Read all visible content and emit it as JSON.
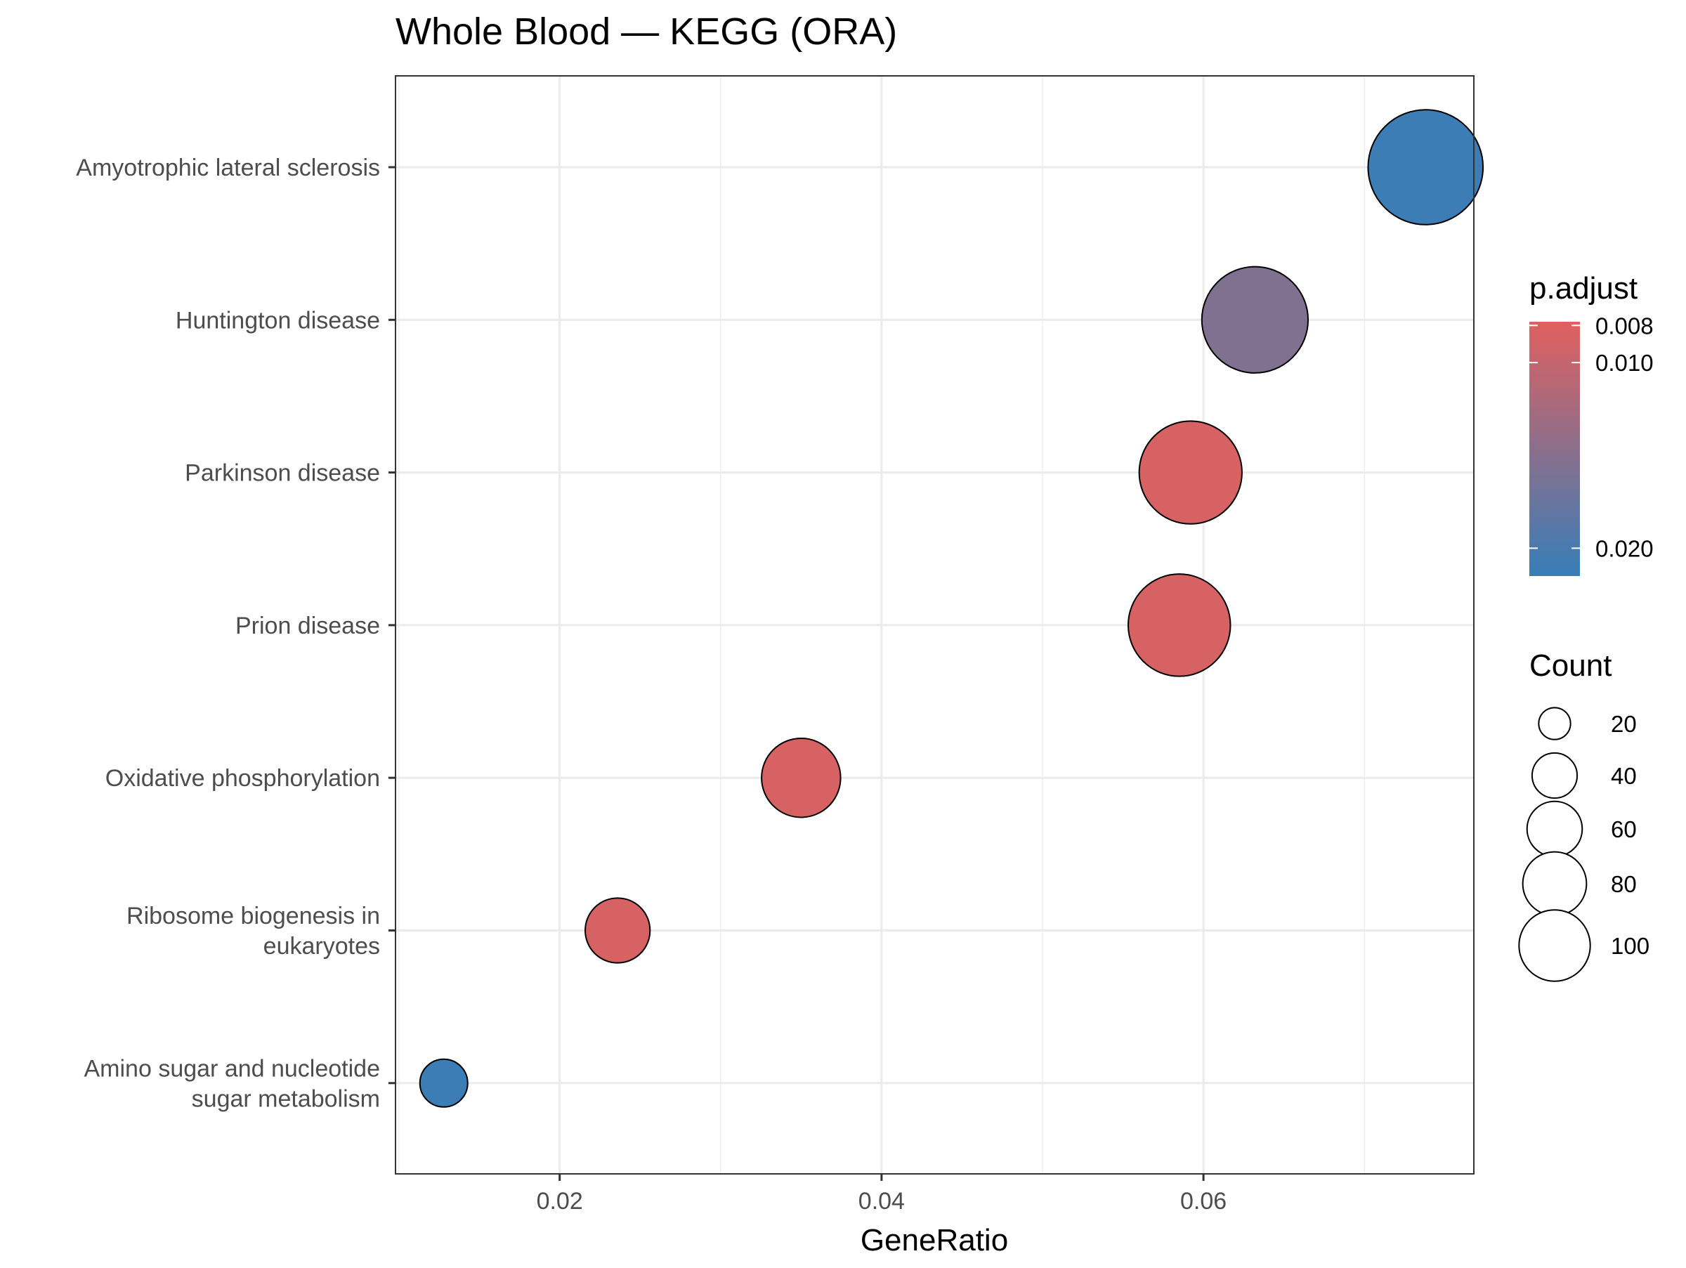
{
  "chart_data": {
    "type": "scatter",
    "title": "Whole Blood — KEGG (ORA)",
    "xlabel": "GeneRatio",
    "ylabel": "",
    "xlim": [
      0.0098,
      0.0768
    ],
    "x_ticks": [
      0.02,
      0.04,
      0.06
    ],
    "x_tick_labels": [
      "0.02",
      "0.04",
      "0.06"
    ],
    "grid": true,
    "categories": [
      "Amyotrophic lateral sclerosis",
      "Huntington disease",
      "Parkinson disease",
      "Prion disease",
      "Oxidative phosphorylation",
      "Ribosome biogenesis in eukaryotes",
      "Amino sugar and nucleotide sugar metabolism"
    ],
    "category_label_lines": [
      [
        "Amyotrophic lateral sclerosis"
      ],
      [
        "Huntington disease"
      ],
      [
        "Parkinson disease"
      ],
      [
        "Prion disease"
      ],
      [
        "Oxidative phosphorylation"
      ],
      [
        "Ribosome biogenesis in",
        "eukaryotes"
      ],
      [
        "Amino sugar and nucleotide",
        "sugar metabolism"
      ]
    ],
    "points": [
      {
        "category": "Amyotrophic lateral sclerosis",
        "gene_ratio": 0.0738,
        "count": 110,
        "p_adjust": 0.021
      },
      {
        "category": "Huntington disease",
        "gene_ratio": 0.0632,
        "count": 94,
        "p_adjust": 0.0155
      },
      {
        "category": "Parkinson disease",
        "gene_ratio": 0.0592,
        "count": 88,
        "p_adjust": 0.0085
      },
      {
        "category": "Prion disease",
        "gene_ratio": 0.0585,
        "count": 87,
        "p_adjust": 0.0085
      },
      {
        "category": "Oxidative phosphorylation",
        "gene_ratio": 0.035,
        "count": 52,
        "p_adjust": 0.0085
      },
      {
        "category": "Ribosome biogenesis in eukaryotes",
        "gene_ratio": 0.0236,
        "count": 35,
        "p_adjust": 0.0085
      },
      {
        "category": "Amino sugar and nucleotide sugar metabolism",
        "gene_ratio": 0.0128,
        "count": 19,
        "p_adjust": 0.021
      }
    ],
    "color_legend": {
      "title": "p.adjust",
      "low_color": "#e0605f",
      "high_color": "#377eb8",
      "range": [
        0.0078,
        0.0215
      ],
      "ticks": [
        0.008,
        0.01,
        0.02
      ],
      "tick_labels": [
        "0.008",
        "0.010",
        "0.020"
      ]
    },
    "size_legend": {
      "title": "Count",
      "values": [
        20,
        40,
        60,
        80,
        100
      ],
      "labels": [
        "20",
        "40",
        "60",
        "80",
        "100"
      ]
    }
  }
}
